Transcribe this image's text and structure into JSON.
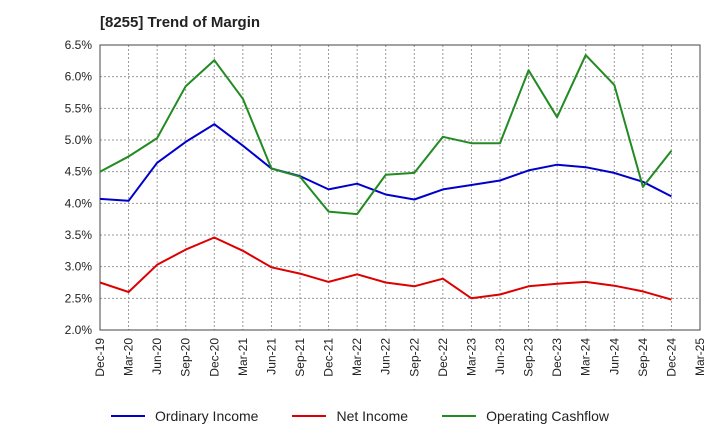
{
  "chart_data": {
    "type": "line",
    "title": "[8255]  Trend of Margin",
    "xlabel": "",
    "ylabel": "",
    "ylim": [
      2.0,
      6.5
    ],
    "yticks": [
      "2.0%",
      "2.5%",
      "3.0%",
      "3.5%",
      "4.0%",
      "4.5%",
      "5.0%",
      "5.5%",
      "6.0%",
      "6.5%"
    ],
    "categories": [
      "Dec-19",
      "Mar-20",
      "Jun-20",
      "Sep-20",
      "Dec-20",
      "Mar-21",
      "Jun-21",
      "Sep-21",
      "Dec-21",
      "Mar-22",
      "Jun-22",
      "Sep-22",
      "Dec-22",
      "Mar-23",
      "Jun-23",
      "Sep-23",
      "Dec-23",
      "Mar-24",
      "Jun-24",
      "Sep-24",
      "Dec-24",
      "Mar-25"
    ],
    "grid": true,
    "legend_position": "bottom",
    "series": [
      {
        "name": "Ordinary Income",
        "color": "#0000cc",
        "values": [
          4.07,
          4.04,
          4.64,
          4.97,
          5.25,
          4.91,
          4.55,
          4.43,
          4.22,
          4.31,
          4.14,
          4.06,
          4.22,
          4.29,
          4.36,
          4.52,
          4.61,
          4.57,
          4.48,
          4.34,
          4.11,
          null
        ]
      },
      {
        "name": "Net Income",
        "color": "#dd0000",
        "values": [
          2.75,
          2.6,
          3.03,
          3.27,
          3.46,
          3.25,
          2.99,
          2.89,
          2.76,
          2.88,
          2.75,
          2.69,
          2.81,
          2.5,
          2.56,
          2.69,
          2.73,
          2.76,
          2.7,
          2.61,
          2.48,
          null
        ]
      },
      {
        "name": "Operating Cashflow",
        "color": "#228b22",
        "values": [
          4.5,
          4.74,
          5.03,
          5.85,
          6.26,
          5.65,
          4.55,
          4.42,
          3.87,
          3.83,
          4.45,
          4.48,
          5.05,
          4.95,
          4.95,
          6.1,
          5.36,
          6.34,
          5.87,
          4.26,
          4.83,
          null
        ]
      }
    ]
  }
}
